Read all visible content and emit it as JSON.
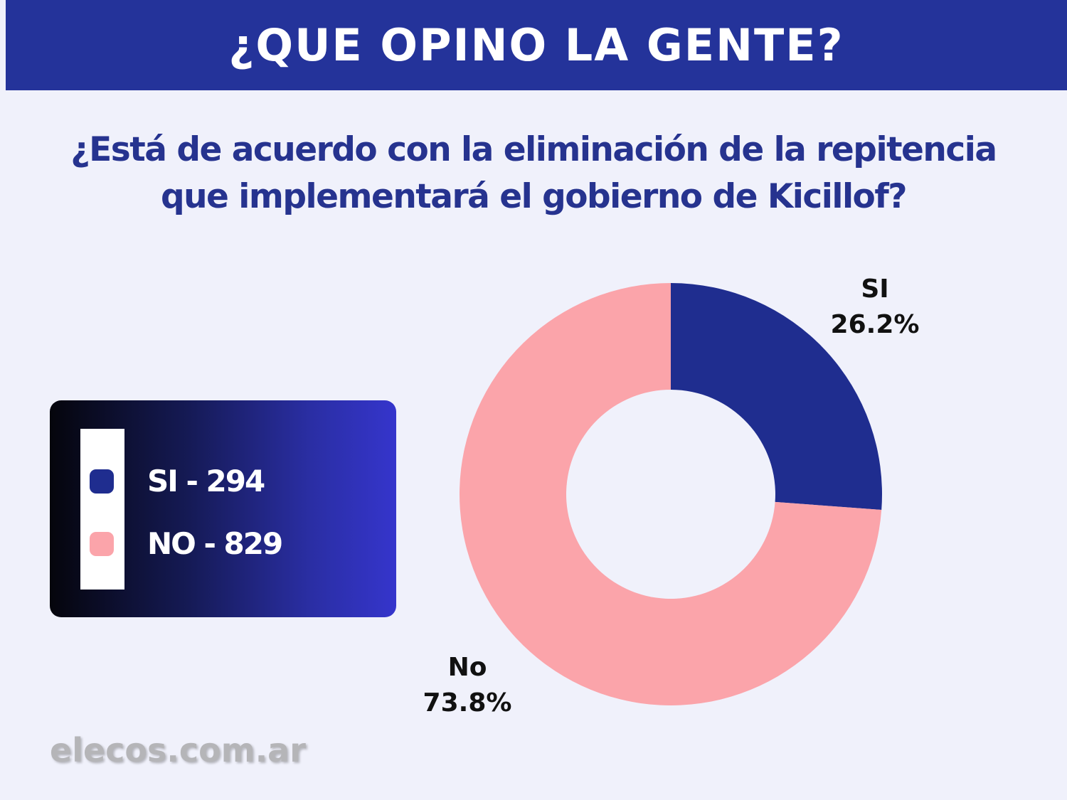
{
  "header": {
    "title": "¿QUE OPINO LA GENTE?"
  },
  "question": {
    "line1": "¿Está de acuerdo con la eliminación de la repitencia",
    "line2": "que implementará el gobierno de Kicillof?"
  },
  "legend": {
    "items": [
      {
        "label": "SI - 294",
        "color": "#1f2d8f"
      },
      {
        "label": "NO - 829",
        "color": "#fba4aa"
      }
    ]
  },
  "chart_data": {
    "type": "pie",
    "variant": "donut",
    "slices": [
      {
        "label": "SI",
        "value": 294,
        "percent_label": "26.2%",
        "color": "#1f2d8f"
      },
      {
        "label": "No",
        "value": 829,
        "percent_label": "73.8%",
        "color": "#fba4aa"
      }
    ]
  },
  "watermark": "elecos.com.ar",
  "colors": {
    "header_bg": "#24339a",
    "question_text": "#26338f",
    "page_bg": "#f0f1fb"
  }
}
